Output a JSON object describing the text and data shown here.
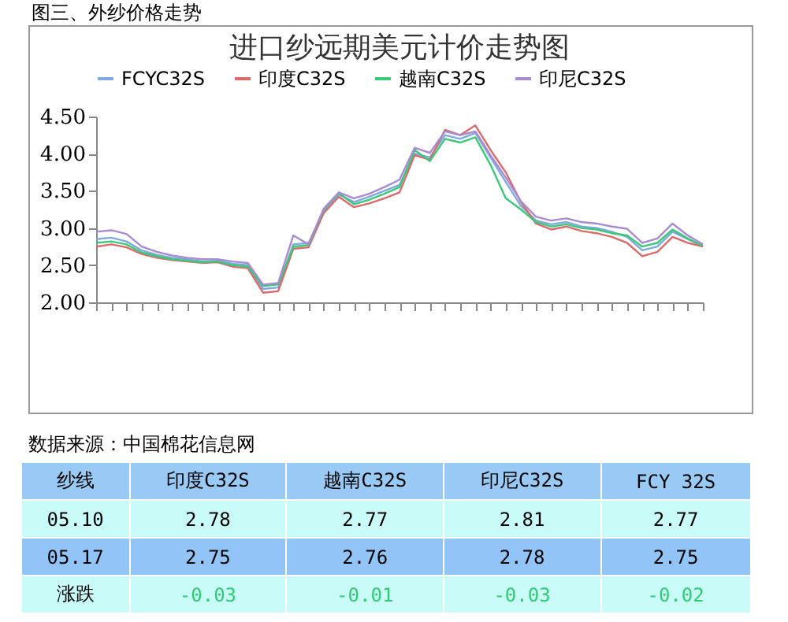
{
  "chart_data": {
    "type": "line",
    "title": "进口纱远期美元计价走势图",
    "categories": [
      null,
      null,
      null,
      null,
      null,
      null,
      null,
      null,
      null,
      null,
      null,
      null,
      null,
      null,
      null,
      null,
      null,
      null,
      null,
      null,
      null,
      null,
      null,
      null,
      null,
      null,
      null,
      null,
      null,
      null,
      null,
      null,
      null,
      null,
      null,
      null,
      null,
      null,
      null,
      null,
      null
    ],
    "series": [
      {
        "name": "FCYC32S",
        "color": "#7fa9e0",
        "values": [
          2.85,
          2.87,
          2.82,
          2.7,
          2.64,
          2.6,
          2.58,
          2.55,
          2.56,
          2.52,
          2.5,
          2.18,
          2.2,
          2.78,
          2.8,
          3.22,
          3.45,
          3.35,
          3.42,
          3.5,
          3.58,
          4.0,
          3.95,
          4.25,
          4.2,
          4.28,
          3.95,
          3.62,
          3.3,
          3.1,
          3.05,
          3.08,
          3.02,
          3.0,
          2.95,
          2.88,
          2.7,
          2.75,
          2.95,
          2.85,
          2.75
        ]
      },
      {
        "name": "印度C32S",
        "color": "#d96b6b",
        "values": [
          2.75,
          2.78,
          2.74,
          2.65,
          2.6,
          2.57,
          2.55,
          2.53,
          2.54,
          2.48,
          2.46,
          2.13,
          2.15,
          2.72,
          2.74,
          3.2,
          3.42,
          3.28,
          3.33,
          3.4,
          3.48,
          3.98,
          3.92,
          4.32,
          4.25,
          4.38,
          4.05,
          3.75,
          3.35,
          3.06,
          2.98,
          3.02,
          2.96,
          2.93,
          2.88,
          2.8,
          2.62,
          2.68,
          2.88,
          2.8,
          2.75
        ]
      },
      {
        "name": "越南C32S",
        "color": "#3cc87a",
        "values": [
          2.8,
          2.82,
          2.78,
          2.67,
          2.62,
          2.58,
          2.56,
          2.54,
          2.55,
          2.5,
          2.48,
          2.22,
          2.24,
          2.75,
          2.77,
          3.25,
          3.47,
          3.32,
          3.38,
          3.46,
          3.55,
          4.05,
          3.9,
          4.2,
          4.15,
          4.22,
          3.85,
          3.4,
          3.25,
          3.08,
          3.02,
          3.05,
          3.0,
          2.98,
          2.93,
          2.9,
          2.75,
          2.8,
          2.98,
          2.86,
          2.76
        ]
      },
      {
        "name": "印尼C32S",
        "color": "#a98bd0",
        "values": [
          2.95,
          2.97,
          2.92,
          2.75,
          2.68,
          2.63,
          2.6,
          2.58,
          2.58,
          2.55,
          2.53,
          2.24,
          2.26,
          2.9,
          2.78,
          3.26,
          3.48,
          3.4,
          3.46,
          3.55,
          3.65,
          4.08,
          4.01,
          4.3,
          4.25,
          4.3,
          3.98,
          3.68,
          3.36,
          3.15,
          3.1,
          3.13,
          3.08,
          3.06,
          3.02,
          2.99,
          2.8,
          2.86,
          3.06,
          2.9,
          2.78
        ]
      }
    ],
    "ylim": [
      2.0,
      4.5
    ],
    "yticks": [
      {
        "value": 2,
        "label": "2.00"
      },
      {
        "value": 2.5,
        "label": "2.50"
      },
      {
        "value": 3,
        "label": "3.00"
      },
      {
        "value": 3.5,
        "label": "3.50"
      },
      {
        "value": 4,
        "label": "4.00"
      },
      {
        "value": 4.5,
        "label": "4.50"
      }
    ],
    "legend": "top",
    "grid": false,
    "marker": "none",
    "annotations": [
      "图三、外纱价格走势",
      "数据来源：中国棉花信息网",
      "纱线",
      "印度C32S",
      "越南C32S",
      "印尼C32S",
      "FCY 32S",
      "05.10",
      "2.78",
      "2.77",
      "2.81",
      "2.77",
      "05.17",
      "2.75",
      "2.76",
      "2.78",
      "2.75",
      "涨跌",
      "-0.03",
      "-0.01",
      "-0.03",
      "-0.02"
    ]
  }
}
